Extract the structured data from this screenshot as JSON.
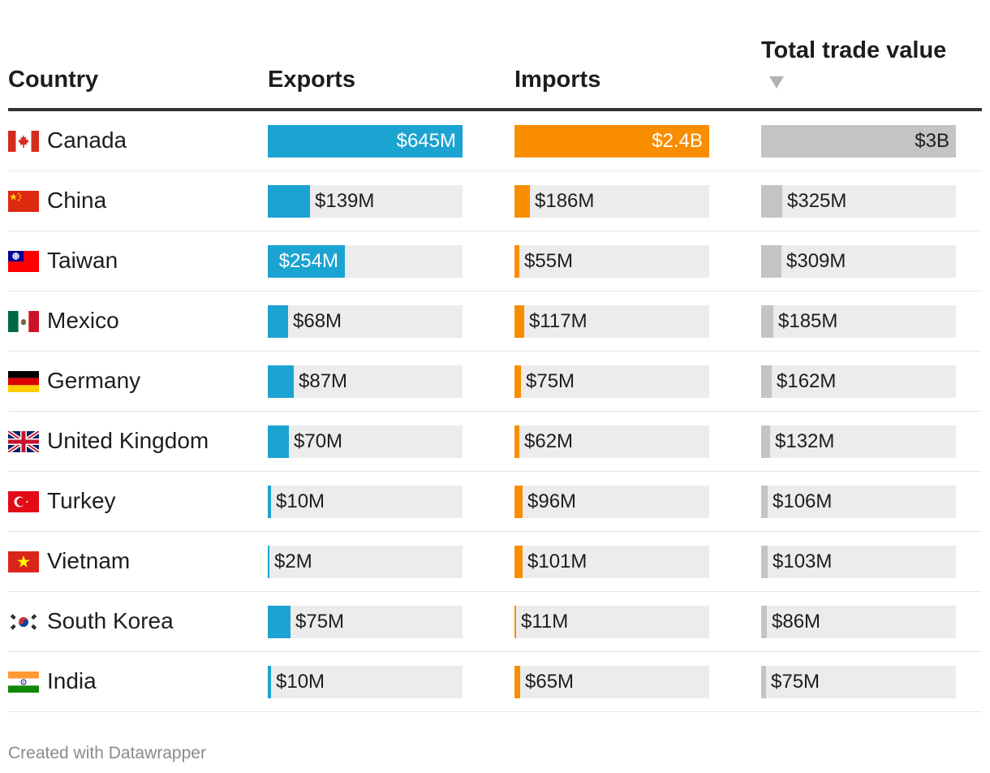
{
  "header": {
    "country": "Country",
    "exports": "Exports",
    "imports": "Imports",
    "total": "Total trade value"
  },
  "footer": "Created with Datawrapper",
  "colors": {
    "exports": "#1ba3d2",
    "imports": "#f98d00",
    "total": "#c4c4c4",
    "track": "#ececec"
  },
  "chart_data": {
    "type": "table",
    "columns": [
      "Country",
      "Exports",
      "Imports",
      "Total trade value"
    ],
    "sort": "Total trade value descending",
    "rows": [
      {
        "country": "Canada",
        "flag": "canada-flag-icon",
        "exports": 645,
        "imports": 2400,
        "total": 3000,
        "exports_label": "$645M",
        "imports_label": "$2.4B",
        "total_label": "$3B"
      },
      {
        "country": "China",
        "flag": "china-flag-icon",
        "exports": 139,
        "imports": 186,
        "total": 325,
        "exports_label": "$139M",
        "imports_label": "$186M",
        "total_label": "$325M"
      },
      {
        "country": "Taiwan",
        "flag": "taiwan-flag-icon",
        "exports": 254,
        "imports": 55,
        "total": 309,
        "exports_label": "$254M",
        "imports_label": "$55M",
        "total_label": "$309M"
      },
      {
        "country": "Mexico",
        "flag": "mexico-flag-icon",
        "exports": 68,
        "imports": 117,
        "total": 185,
        "exports_label": "$68M",
        "imports_label": "$117M",
        "total_label": "$185M"
      },
      {
        "country": "Germany",
        "flag": "germany-flag-icon",
        "exports": 87,
        "imports": 75,
        "total": 162,
        "exports_label": "$87M",
        "imports_label": "$75M",
        "total_label": "$162M"
      },
      {
        "country": "United Kingdom",
        "flag": "united-kingdom-flag-icon",
        "exports": 70,
        "imports": 62,
        "total": 132,
        "exports_label": "$70M",
        "imports_label": "$62M",
        "total_label": "$132M"
      },
      {
        "country": "Turkey",
        "flag": "turkey-flag-icon",
        "exports": 10,
        "imports": 96,
        "total": 106,
        "exports_label": "$10M",
        "imports_label": "$96M",
        "total_label": "$106M"
      },
      {
        "country": "Vietnam",
        "flag": "vietnam-flag-icon",
        "exports": 2,
        "imports": 101,
        "total": 103,
        "exports_label": "$2M",
        "imports_label": "$101M",
        "total_label": "$103M"
      },
      {
        "country": "South Korea",
        "flag": "south-korea-flag-icon",
        "exports": 75,
        "imports": 11,
        "total": 86,
        "exports_label": "$75M",
        "imports_label": "$11M",
        "total_label": "$86M"
      },
      {
        "country": "India",
        "flag": "india-flag-icon",
        "exports": 10,
        "imports": 65,
        "total": 75,
        "exports_label": "$10M",
        "imports_label": "$65M",
        "total_label": "$75M"
      }
    ]
  }
}
